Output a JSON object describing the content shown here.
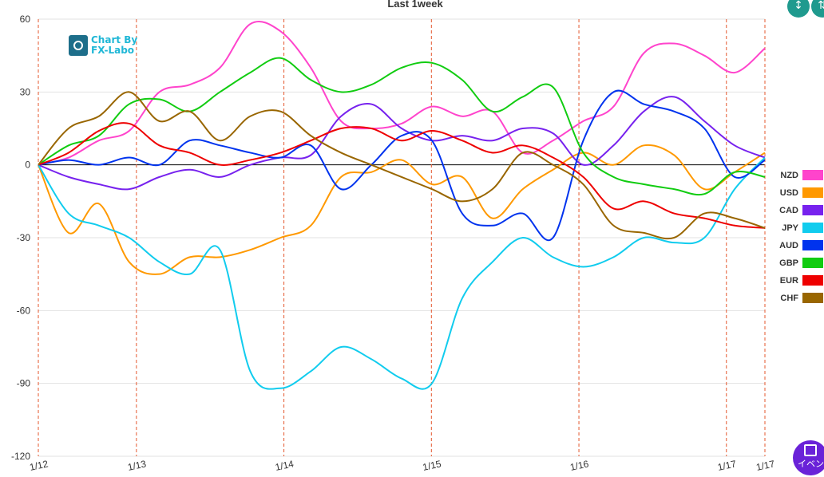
{
  "chart_data": {
    "type": "line",
    "title": "Last 1week",
    "xlabel": "",
    "ylabel": "",
    "ylim": [
      -120,
      60
    ],
    "y_ticks": [
      "60",
      "30",
      "0",
      "-30",
      "-60",
      "-90",
      "-120"
    ],
    "x_tick_labels": [
      "1/12",
      "1/13",
      "1/14",
      "1/15",
      "1/16",
      "1/17",
      "1/17"
    ],
    "x_tick_positions": [
      0,
      0.135,
      0.338,
      0.541,
      0.744,
      0.947,
      1.0
    ],
    "grid": true,
    "legend_position": "right",
    "series": [
      {
        "name": "NZD",
        "color": "#ff44cc",
        "values": [
          0,
          3,
          10,
          14,
          30,
          33,
          40,
          58,
          55,
          40,
          18,
          15,
          17,
          24,
          20,
          22,
          5,
          10,
          18,
          24,
          46,
          50,
          45,
          38,
          48
        ]
      },
      {
        "name": "USD",
        "color": "#ff9900",
        "values": [
          0,
          -28,
          -16,
          -40,
          -45,
          -38,
          -38,
          -35,
          -30,
          -25,
          -5,
          -3,
          2,
          -8,
          -5,
          -22,
          -10,
          -2,
          5,
          0,
          8,
          4,
          -10,
          -3,
          5
        ]
      },
      {
        "name": "CAD",
        "color": "#7722ee",
        "values": [
          0,
          -5,
          -8,
          -10,
          -5,
          -2,
          -5,
          0,
          3,
          4,
          20,
          25,
          15,
          10,
          12,
          10,
          15,
          13,
          0,
          8,
          22,
          28,
          18,
          8,
          3
        ]
      },
      {
        "name": "JPY",
        "color": "#11ccee",
        "values": [
          0,
          -20,
          -25,
          -30,
          -40,
          -45,
          -35,
          -85,
          -92,
          -85,
          -75,
          -80,
          -88,
          -90,
          -55,
          -40,
          -30,
          -38,
          -42,
          -38,
          -30,
          -32,
          -30,
          -10,
          3
        ]
      },
      {
        "name": "AUD",
        "color": "#0033ee",
        "values": [
          0,
          2,
          0,
          3,
          0,
          10,
          8,
          5,
          3,
          8,
          -10,
          0,
          12,
          10,
          -20,
          -25,
          -20,
          -30,
          10,
          30,
          25,
          22,
          15,
          -5,
          2
        ]
      },
      {
        "name": "GBP",
        "color": "#11cc11",
        "values": [
          0,
          8,
          12,
          25,
          27,
          22,
          30,
          38,
          44,
          35,
          30,
          33,
          40,
          42,
          35,
          22,
          28,
          32,
          5,
          -5,
          -8,
          -10,
          -12,
          -3,
          -5
        ]
      },
      {
        "name": "EUR",
        "color": "#ee0000",
        "values": [
          0,
          5,
          14,
          17,
          8,
          5,
          0,
          2,
          5,
          10,
          15,
          15,
          10,
          14,
          10,
          5,
          8,
          3,
          -5,
          -18,
          -15,
          -20,
          -22,
          -25,
          -26
        ]
      },
      {
        "name": "CHF",
        "color": "#996600",
        "values": [
          0,
          15,
          20,
          30,
          18,
          22,
          10,
          20,
          22,
          12,
          5,
          0,
          -5,
          -10,
          -15,
          -10,
          5,
          0,
          -8,
          -25,
          -28,
          -30,
          -20,
          -22,
          -26
        ]
      }
    ]
  },
  "logo": {
    "line1": "Chart By",
    "line2": "FX-Labo"
  },
  "buttons": {
    "fab1_icon": "↕",
    "fab2_icon": "⇅",
    "event_label": "イベン"
  }
}
